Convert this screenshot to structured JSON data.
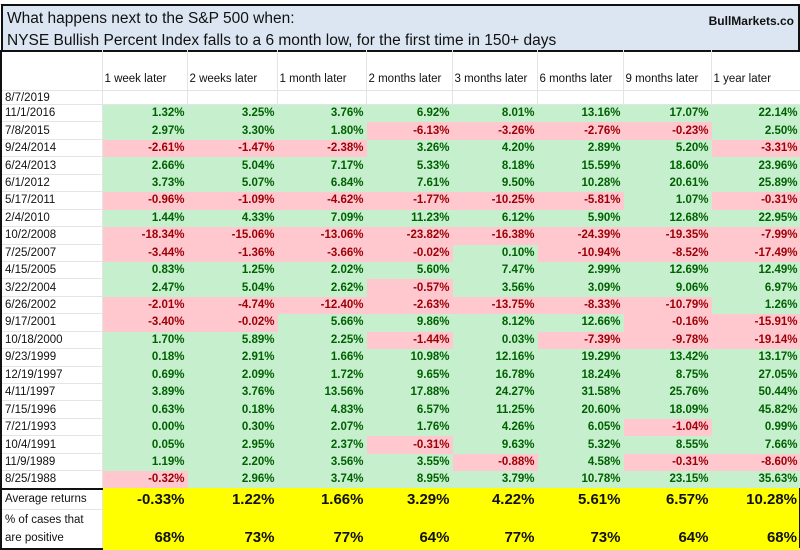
{
  "title": {
    "line1": "What happens next to the S&P 500 when:",
    "line2": "NYSE Bullish Percent Index falls to a 6 month low, for the first time in 150+ days",
    "brand": "BullMarkets.co"
  },
  "columns": [
    "1 week later",
    "2 weeks later",
    "1 month later",
    "2 months later",
    "3 months later",
    "6 months later",
    "9 months later",
    "1 year later"
  ],
  "current_date": "8/7/2019",
  "rows": [
    {
      "date": "11/1/2016",
      "values": [
        "1.32%",
        "3.25%",
        "3.76%",
        "6.92%",
        "8.01%",
        "13.16%",
        "17.07%",
        "22.14%"
      ]
    },
    {
      "date": "7/8/2015",
      "values": [
        "2.97%",
        "3.30%",
        "1.80%",
        "-6.13%",
        "-3.26%",
        "-2.76%",
        "-0.23%",
        "2.50%"
      ]
    },
    {
      "date": "9/24/2014",
      "values": [
        "-2.61%",
        "-1.47%",
        "-2.38%",
        "3.26%",
        "4.20%",
        "2.89%",
        "5.20%",
        "-3.31%"
      ]
    },
    {
      "date": "6/24/2013",
      "values": [
        "2.66%",
        "5.04%",
        "7.17%",
        "5.33%",
        "8.18%",
        "15.59%",
        "18.60%",
        "23.96%"
      ]
    },
    {
      "date": "6/1/2012",
      "values": [
        "3.73%",
        "5.07%",
        "6.84%",
        "7.61%",
        "9.50%",
        "10.28%",
        "20.61%",
        "25.89%"
      ]
    },
    {
      "date": "5/17/2011",
      "values": [
        "-0.96%",
        "-1.09%",
        "-4.62%",
        "-1.77%",
        "-10.25%",
        "-5.81%",
        "1.07%",
        "-0.31%"
      ]
    },
    {
      "date": "2/4/2010",
      "values": [
        "1.44%",
        "4.33%",
        "7.09%",
        "11.23%",
        "6.12%",
        "5.90%",
        "12.68%",
        "22.95%"
      ]
    },
    {
      "date": "10/2/2008",
      "values": [
        "-18.34%",
        "-15.06%",
        "-13.06%",
        "-23.82%",
        "-16.38%",
        "-24.39%",
        "-19.35%",
        "-7.99%"
      ]
    },
    {
      "date": "7/25/2007",
      "values": [
        "-3.44%",
        "-1.36%",
        "-3.66%",
        "-0.02%",
        "0.10%",
        "-10.94%",
        "-8.52%",
        "-17.49%"
      ]
    },
    {
      "date": "4/15/2005",
      "values": [
        "0.83%",
        "1.25%",
        "2.02%",
        "5.60%",
        "7.47%",
        "2.99%",
        "12.69%",
        "12.49%"
      ]
    },
    {
      "date": "3/22/2004",
      "values": [
        "2.47%",
        "5.04%",
        "2.62%",
        "-0.57%",
        "3.56%",
        "3.09%",
        "9.06%",
        "6.97%"
      ]
    },
    {
      "date": "6/26/2002",
      "values": [
        "-2.01%",
        "-4.74%",
        "-12.40%",
        "-2.63%",
        "-13.75%",
        "-8.33%",
        "-10.79%",
        "1.26%"
      ]
    },
    {
      "date": "9/17/2001",
      "values": [
        "-3.40%",
        "-0.02%",
        "5.66%",
        "9.86%",
        "8.12%",
        "12.66%",
        "-0.16%",
        "-15.91%"
      ]
    },
    {
      "date": "10/18/2000",
      "values": [
        "1.70%",
        "5.89%",
        "2.25%",
        "-1.44%",
        "0.03%",
        "-7.39%",
        "-9.78%",
        "-19.14%"
      ]
    },
    {
      "date": "9/23/1999",
      "values": [
        "0.18%",
        "2.91%",
        "1.66%",
        "10.98%",
        "12.16%",
        "19.29%",
        "13.42%",
        "13.17%"
      ]
    },
    {
      "date": "12/19/1997",
      "values": [
        "0.69%",
        "2.09%",
        "1.72%",
        "9.65%",
        "16.78%",
        "18.24%",
        "8.75%",
        "27.05%"
      ]
    },
    {
      "date": "4/11/1997",
      "values": [
        "3.89%",
        "3.76%",
        "13.56%",
        "17.88%",
        "24.27%",
        "31.58%",
        "25.76%",
        "50.44%"
      ]
    },
    {
      "date": "7/15/1996",
      "values": [
        "0.63%",
        "0.18%",
        "4.83%",
        "6.57%",
        "11.25%",
        "20.60%",
        "18.09%",
        "45.82%"
      ]
    },
    {
      "date": "7/21/1993",
      "values": [
        "0.00%",
        "0.30%",
        "2.07%",
        "1.76%",
        "4.26%",
        "6.05%",
        "-1.04%",
        "0.99%"
      ]
    },
    {
      "date": "10/4/1991",
      "values": [
        "0.05%",
        "2.95%",
        "2.37%",
        "-0.31%",
        "9.63%",
        "5.32%",
        "8.55%",
        "7.66%"
      ]
    },
    {
      "date": "11/9/1989",
      "values": [
        "1.19%",
        "2.20%",
        "3.56%",
        "3.55%",
        "-0.88%",
        "4.58%",
        "-0.31%",
        "-8.60%"
      ]
    },
    {
      "date": "8/25/1988",
      "values": [
        "-0.32%",
        "2.96%",
        "3.74%",
        "8.95%",
        "3.79%",
        "10.78%",
        "23.15%",
        "35.63%"
      ]
    }
  ],
  "summary": {
    "average_label": "Average returns",
    "average_values": [
      "-0.33%",
      "1.22%",
      "1.66%",
      "3.29%",
      "4.22%",
      "5.61%",
      "6.57%",
      "10.28%"
    ],
    "positive_label_line1": "% of cases that",
    "positive_label_line2": "are positive",
    "positive_values": [
      "68%",
      "73%",
      "77%",
      "64%",
      "77%",
      "73%",
      "64%",
      "68%"
    ]
  },
  "colors": {
    "positive_bg": "#c6efce",
    "positive_text": "#006100",
    "negative_bg": "#ffc7ce",
    "negative_text": "#9c0006",
    "summary_bg": "#ffff00",
    "title_bg": "#dce6f2"
  }
}
